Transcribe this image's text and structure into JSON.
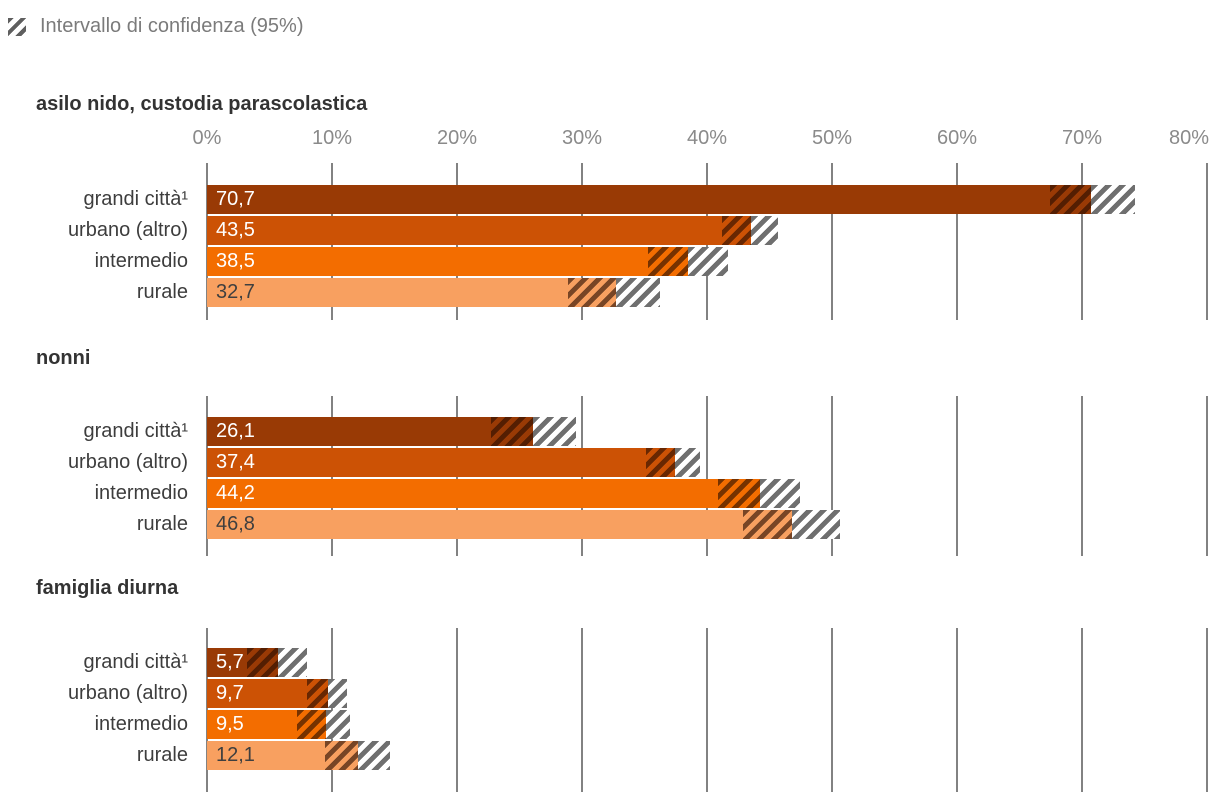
{
  "legend": {
    "label": "Intervallo di confidenza (95%)",
    "icon": "ci-hatch-swatch"
  },
  "axis": {
    "min": 0,
    "max": 80,
    "tick_step": 10,
    "tick_labels": [
      "0%",
      "10%",
      "20%",
      "30%",
      "40%",
      "50%",
      "60%",
      "70%",
      "80%"
    ],
    "grid": true
  },
  "colors": {
    "grandi_citta": "#993A05",
    "urbano_altro": "#CC5205",
    "intermedio": "#F36D00",
    "rurale": "#F8A060",
    "gridline": "#828282",
    "axis_text": "#8A8A8A",
    "category_text": "#3D3D3D",
    "title_text": "#333333",
    "legend_text": "#7B7B7B",
    "ci_over_stripe": "rgba(42,13,0,0.62)",
    "ci_beyond_stripe": "#6F6F6F"
  },
  "chart_data": {
    "type": "bar",
    "orientation": "horizontal",
    "unit": "%",
    "xlim": [
      0,
      80
    ],
    "legend_entry": "Intervallo di confidenza (95%)",
    "categories": [
      "grandi città¹",
      "urbano (altro)",
      "intermedio",
      "rurale"
    ],
    "groups": [
      {
        "title": "asilo nido, custodia parascolastica",
        "show_axis_labels": true,
        "bars": [
          {
            "label": "grandi città¹",
            "value": 70.7,
            "display": "70,7",
            "ci_low": 67.4,
            "ci_high": 74.2,
            "color": "#993A05",
            "value_color": "#FFFFFF"
          },
          {
            "label": "urbano (altro)",
            "value": 43.5,
            "display": "43,5",
            "ci_low": 41.2,
            "ci_high": 45.7,
            "color": "#CC5205",
            "value_color": "#FFFFFF"
          },
          {
            "label": "intermedio",
            "value": 38.5,
            "display": "38,5",
            "ci_low": 35.3,
            "ci_high": 41.7,
            "color": "#F36D00",
            "value_color": "#FFFFFF"
          },
          {
            "label": "rurale",
            "value": 32.7,
            "display": "32,7",
            "ci_low": 28.9,
            "ci_high": 36.2,
            "color": "#F8A060",
            "value_color": "#3F3F3F"
          }
        ]
      },
      {
        "title": "nonni",
        "show_axis_labels": false,
        "bars": [
          {
            "label": "grandi città¹",
            "value": 26.1,
            "display": "26,1",
            "ci_low": 22.7,
            "ci_high": 29.5,
            "color": "#993A05",
            "value_color": "#FFFFFF"
          },
          {
            "label": "urbano (altro)",
            "value": 37.4,
            "display": "37,4",
            "ci_low": 35.1,
            "ci_high": 39.4,
            "color": "#CC5205",
            "value_color": "#FFFFFF"
          },
          {
            "label": "intermedio",
            "value": 44.2,
            "display": "44,2",
            "ci_low": 40.9,
            "ci_high": 47.4,
            "color": "#F36D00",
            "value_color": "#FFFFFF"
          },
          {
            "label": "rurale",
            "value": 46.8,
            "display": "46,8",
            "ci_low": 42.9,
            "ci_high": 50.6,
            "color": "#F8A060",
            "value_color": "#3F3F3F"
          }
        ]
      },
      {
        "title": "famiglia diurna",
        "show_axis_labels": false,
        "bars": [
          {
            "label": "grandi città¹",
            "value": 5.7,
            "display": "5,7",
            "ci_low": 3.2,
            "ci_high": 8.0,
            "color": "#993A05",
            "value_color": "#FFFFFF"
          },
          {
            "label": "urbano (altro)",
            "value": 9.7,
            "display": "9,7",
            "ci_low": 8.0,
            "ci_high": 11.2,
            "color": "#CC5205",
            "value_color": "#FFFFFF"
          },
          {
            "label": "intermedio",
            "value": 9.5,
            "display": "9,5",
            "ci_low": 7.2,
            "ci_high": 11.4,
            "color": "#F36D00",
            "value_color": "#FFFFFF"
          },
          {
            "label": "rurale",
            "value": 12.1,
            "display": "12,1",
            "ci_low": 9.4,
            "ci_high": 14.6,
            "color": "#F8A060",
            "value_color": "#3F3F3F"
          }
        ]
      }
    ]
  }
}
